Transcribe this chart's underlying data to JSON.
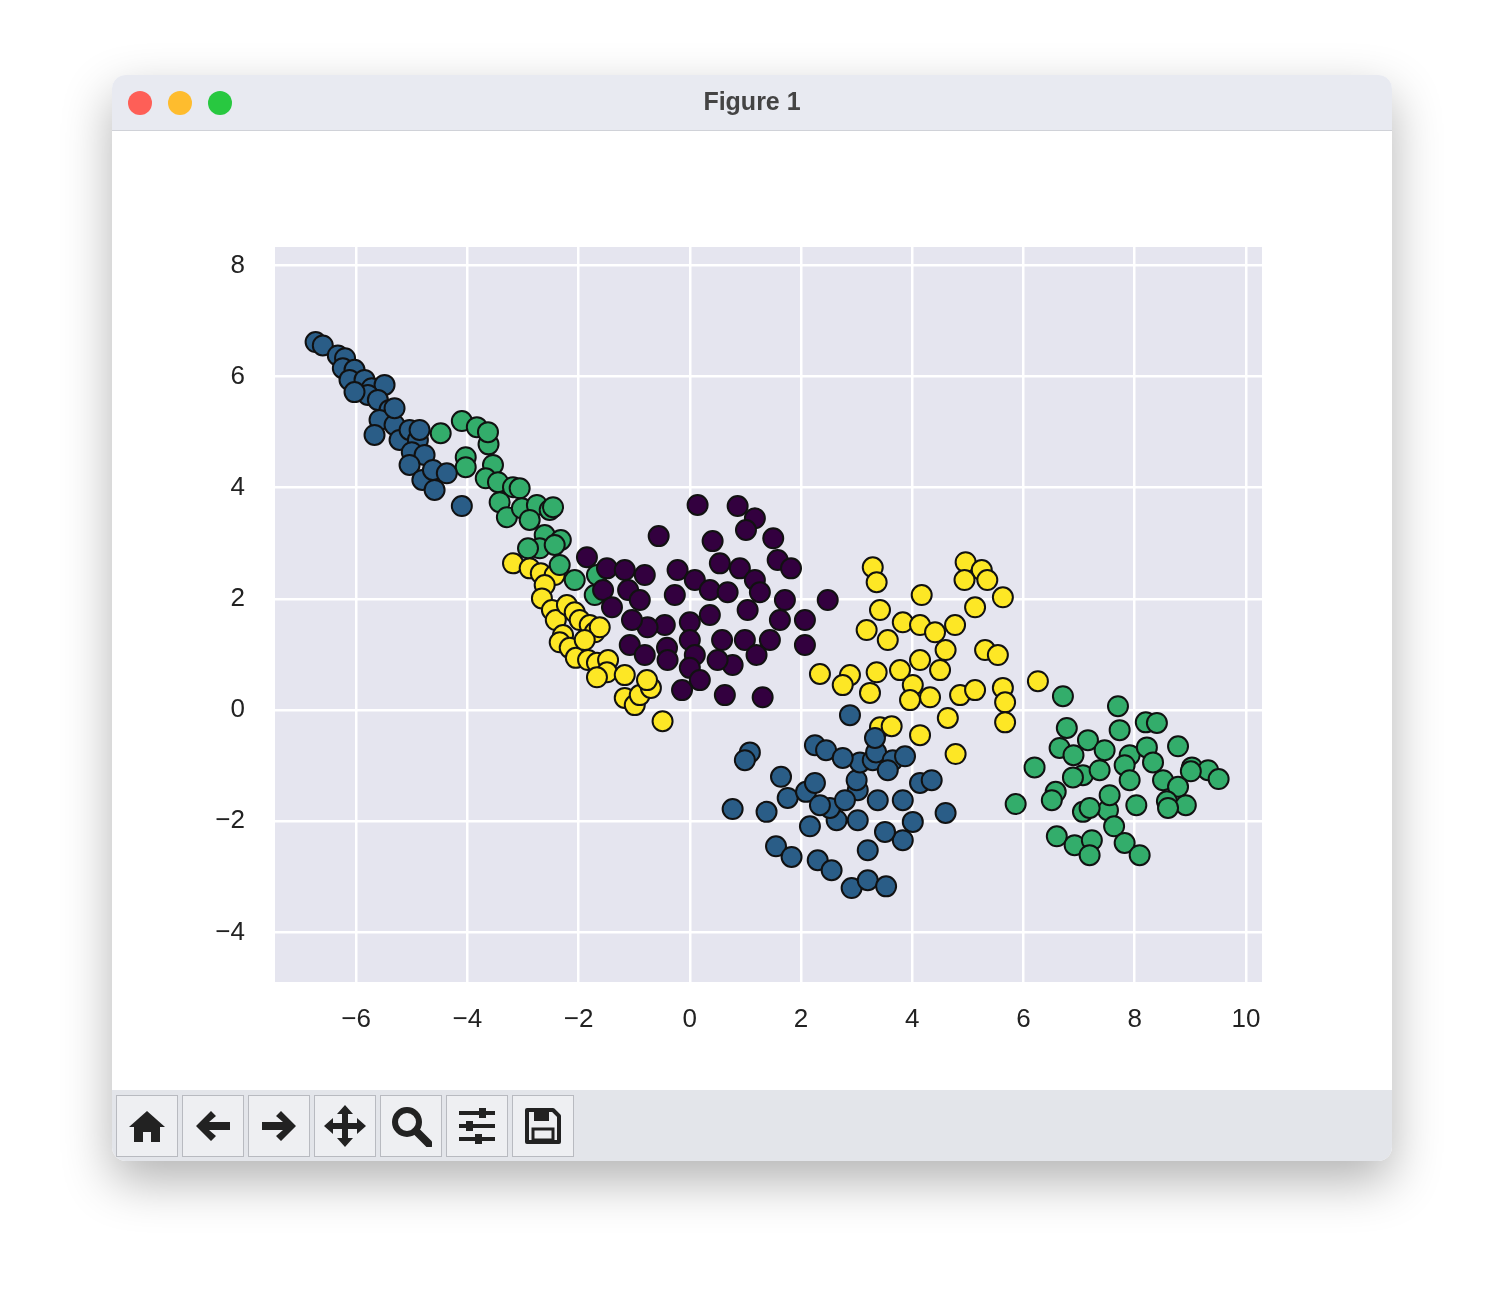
{
  "chart_data": {
    "type": "scatter",
    "title": "Figure 1",
    "marker": "circle",
    "grid": true,
    "xlim": [
      -7.46,
      10.29
    ],
    "ylim": [
      -4.89,
      8.33
    ],
    "xticks": [
      {
        "value": -6,
        "label": "−6"
      },
      {
        "value": -4,
        "label": "−4"
      },
      {
        "value": -2,
        "label": "−2"
      },
      0,
      2,
      4,
      6,
      8,
      10
    ],
    "yticks": [
      {
        "value": -4,
        "label": "−4"
      },
      {
        "value": -2,
        "label": "−2"
      },
      0,
      2,
      4,
      6,
      8
    ],
    "series": [
      {
        "color": "#33003f",
        "x": [
          0.14,
          0.86,
          1.17,
          1.01,
          1.5,
          -0.56,
          -1.85,
          0.41,
          1.58,
          1.82,
          -1.49,
          -1.17,
          -0.81,
          -0.22,
          0.09,
          0.54,
          0.9,
          1.17,
          -1.56,
          -1.11,
          -0.9,
          -0.27,
          0.36,
          0.68,
          1.26,
          1.71,
          2.01,
          2.48,
          2.07,
          1.62,
          1.04,
          0.36,
          0.0,
          -0.45,
          -0.76,
          -1.04,
          -1.4,
          -1.08,
          -0.76,
          -0.41,
          0.0,
          0.58,
          0.99,
          1.44,
          1.2,
          0.77,
          0.5,
          0.09,
          -0.4,
          -0.81,
          0.0,
          0.18,
          0.63,
          1.31,
          -0.14,
          2.07
        ],
        "values": [
          3.69,
          3.67,
          3.45,
          3.24,
          3.09,
          3.13,
          2.75,
          3.04,
          2.7,
          2.55,
          2.55,
          2.52,
          2.43,
          2.52,
          2.34,
          2.64,
          2.55,
          2.34,
          2.16,
          2.16,
          1.98,
          2.07,
          2.16,
          2.12,
          2.12,
          1.98,
          null,
          1.98,
          1.62,
          1.62,
          1.8,
          1.71,
          1.58,
          1.53,
          1.49,
          1.62,
          1.85,
          1.17,
          null,
          1.12,
          1.26,
          1.26,
          1.26,
          1.26,
          0.99,
          0.81,
          0.9,
          0.99,
          0.9,
          0.99,
          0.76,
          0.54,
          0.27,
          0.23,
          0.36,
          1.17
        ]
      },
      {
        "color": "#2a5d87",
        "x": [
          -6.73,
          -6.6,
          -6.33,
          -6.2,
          -6.24,
          -6.03,
          -6.12,
          -5.85,
          -5.72,
          -5.49,
          -5.79,
          -5.61,
          -6.03,
          -5.4,
          -5.58,
          -5.67,
          -5.31,
          -5.22,
          -5.04,
          -4.89,
          -5.0,
          -4.77,
          -5.04,
          -4.81,
          -4.59,
          -4.62,
          -4.37,
          -4.86,
          -5.31,
          -4.1,
          1.08,
          0.99,
          1.64,
          2.25,
          2.45,
          0.77,
          1.38,
          1.76,
          2.09,
          2.25,
          2.16,
          1.55,
          1.83,
          2.3,
          2.55,
          2.91,
          3.2,
          3.53,
          3.02,
          3.02,
          3.0,
          3.06,
          2.75,
          3.29,
          3.35,
          3.65,
          3.87,
          4.14,
          4.35,
          3.83,
          4.01,
          3.83,
          3.51,
          3.2,
          2.64,
          2.52,
          3.38,
          4.6,
          2.88,
          3.33,
          2.79,
          2.34,
          3.56
        ],
        "values": [
          6.62,
          6.56,
          6.38,
          6.33,
          6.15,
          6.12,
          5.94,
          5.94,
          5.79,
          5.85,
          5.67,
          5.58,
          5.72,
          5.4,
          5.22,
          4.95,
          5.13,
          4.86,
          5.04,
          4.86,
          4.64,
          4.59,
          4.41,
          4.14,
          3.96,
          4.32,
          4.26,
          5.04,
          5.43,
          3.67,
          -0.76,
          -0.9,
          -1.2,
          -0.63,
          -0.72,
          -1.78,
          -1.83,
          -1.58,
          -1.47,
          -1.31,
          -2.09,
          -2.45,
          -2.64,
          -2.7,
          -2.88,
          -3.2,
          -3.06,
          -3.17,
          -1.98,
          -1.44,
          -1.26,
          -0.94,
          -0.86,
          -0.9,
          -0.76,
          -0.9,
          -0.83,
          -1.31,
          -1.26,
          -1.62,
          -2.01,
          -2.34,
          -2.19,
          -2.52,
          -1.98,
          -1.76,
          -1.62,
          -1.85,
          -0.09,
          -0.5,
          -1.62,
          -1.71,
          -1.08
        ]
      },
      {
        "color": "#33ad6b",
        "x": [
          -4.48,
          -4.1,
          -3.83,
          -3.62,
          -3.63,
          -4.03,
          -4.03,
          -3.54,
          -3.67,
          -3.45,
          -3.18,
          -3.06,
          -3.42,
          -3.29,
          -3.02,
          -2.75,
          -2.52,
          -2.46,
          -2.88,
          -2.61,
          -2.32,
          -2.7,
          -2.91,
          -2.43,
          -2.34,
          -2.07,
          -1.67,
          -1.71,
          6.71,
          7.7,
          8.2,
          8.4,
          6.78,
          6.2,
          5.86,
          6.65,
          6.9,
          7.16,
          7.46,
          7.91,
          7.82,
          8.22,
          8.78,
          9.03,
          9.32,
          9.51,
          9.01,
          8.51,
          8.78,
          8.58,
          8.92,
          8.6,
          8.03,
          7.52,
          7.07,
          7.19,
          7.07,
          6.89,
          6.58,
          6.51,
          6.6,
          6.92,
          7.23,
          7.19,
          7.63,
          7.82,
          8.09,
          7.55,
          7.91,
          7.37,
          7.73,
          8.33
        ],
        "values": [
          4.98,
          5.2,
          5.09,
          4.78,
          5.0,
          4.55,
          4.37,
          4.41,
          4.17,
          4.1,
          4.01,
          3.99,
          3.74,
          3.47,
          3.63,
          3.69,
          3.6,
          3.65,
          3.42,
          3.15,
          3.06,
          2.91,
          2.91,
          2.97,
          2.61,
          2.34,
          2.43,
          2.07,
          0.25,
          0.07,
          -0.22,
          -0.23,
          -0.32,
          -1.03,
          -1.69,
          -0.68,
          -0.81,
          -0.54,
          -0.72,
          -0.81,
          -0.99,
          -0.67,
          -0.65,
          -1.03,
          -1.08,
          -1.24,
          -1.1,
          -1.26,
          -1.38,
          -1.64,
          -1.71,
          -1.76,
          -1.71,
          -1.8,
          -1.83,
          -1.76,
          -1.17,
          -1.21,
          -1.47,
          -1.62,
          -2.27,
          -2.43,
          -2.34,
          -2.61,
          -2.09,
          -2.39,
          -2.61,
          -1.53,
          -1.26,
          -1.08,
          -0.36,
          -0.94
        ]
      },
      {
        "color": "#fde725",
        "x": [
          -3.18,
          -2.88,
          -2.68,
          -2.43,
          -2.61,
          -2.66,
          -2.48,
          -2.41,
          -2.21,
          -2.07,
          -1.98,
          -1.8,
          -1.71,
          -1.62,
          -2.28,
          -2.34,
          -2.16,
          -2.05,
          -1.83,
          -1.67,
          -1.47,
          -1.49,
          -1.67,
          -1.17,
          -1.17,
          -0.99,
          -0.9,
          -0.7,
          -0.77,
          -0.49,
          -1.89,
          3.29,
          3.36,
          4.96,
          5.25,
          4.94,
          5.35,
          5.63,
          5.13,
          4.17,
          3.42,
          3.18,
          3.56,
          3.83,
          4.14,
          4.41,
          4.77,
          5.31,
          5.54,
          4.6,
          4.14,
          3.78,
          3.36,
          2.88,
          2.34,
          2.75,
          3.24,
          4.01,
          4.32,
          4.64,
          3.96,
          4.86,
          5.13,
          5.63,
          5.67,
          5.67,
          4.14,
          4.78,
          3.42,
          3.63,
          6.26,
          4.5
        ],
        "values": [
          2.64,
          2.55,
          2.46,
          2.43,
          2.25,
          2.01,
          1.8,
          1.62,
          1.89,
          1.76,
          1.62,
          1.53,
          1.4,
          1.49,
          1.35,
          1.22,
          1.12,
          0.94,
          0.9,
          0.85,
          0.9,
          0.68,
          0.59,
          0.63,
          0.22,
          0.09,
          0.27,
          0.4,
          0.54,
          -0.2,
          1.26,
          2.57,
          2.3,
          2.66,
          2.52,
          2.34,
          2.34,
          2.03,
          1.85,
          2.07,
          1.8,
          1.44,
          1.26,
          1.58,
          1.53,
          1.4,
          1.53,
          1.08,
          0.99,
          1.08,
          0.9,
          0.72,
          0.68,
          0.63,
          0.65,
          0.45,
          0.31,
          0.45,
          0.23,
          -0.14,
          0.18,
          0.27,
          0.36,
          0.4,
          0.14,
          -0.22,
          -0.45,
          -0.79,
          -0.31,
          -0.29,
          0.52,
          0.72
        ]
      }
    ]
  }
}
